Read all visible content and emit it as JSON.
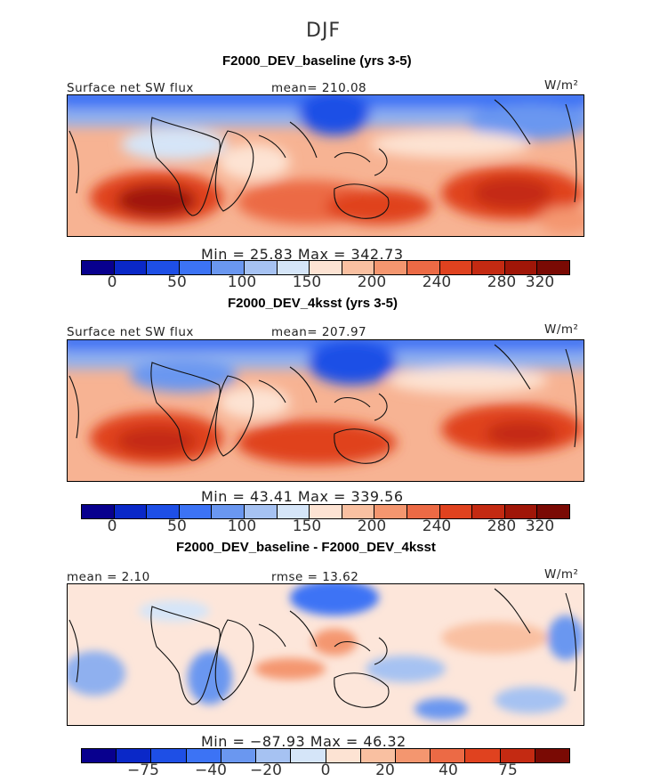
{
  "title": "DJF",
  "units": "W/m²",
  "panels": [
    {
      "title": "F2000_DEV_baseline (yrs 3-5)",
      "left_label": "Surface net SW flux",
      "stat_label": "mean= 210.08",
      "minmax": "Min =   25.83  Max  =  342.73",
      "palette": "abs",
      "ticks": [
        "0",
        "50",
        "100",
        "150",
        "200",
        "240",
        "280",
        "320"
      ]
    },
    {
      "title": "F2000_DEV_4ksst (yrs 3-5)",
      "left_label": "Surface net SW flux",
      "stat_label": "mean= 207.97",
      "minmax": "Min =   43.41  Max  =  339.56",
      "palette": "abs",
      "ticks": [
        "0",
        "50",
        "100",
        "150",
        "200",
        "240",
        "280",
        "320"
      ]
    },
    {
      "title": "F2000_DEV_baseline - F2000_DEV_4ksst",
      "left_label": "mean =    2.10",
      "stat_label": "rmse =   13.62",
      "minmax": "Min =  −87.93  Max  =   46.32",
      "palette": "diff",
      "ticks": [
        "−75",
        "−40",
        "−20",
        "0",
        "20",
        "40",
        "75"
      ]
    }
  ],
  "colors": {
    "abs": [
      "#08008e",
      "#0a28c8",
      "#1e4fe6",
      "#3c73f5",
      "#6a97f0",
      "#a6c2f2",
      "#d5e5f8",
      "#fde3d3",
      "#f9c0a1",
      "#f4966f",
      "#ec6a45",
      "#e0421f",
      "#c42a12",
      "#a01608",
      "#7a0a04"
    ],
    "diff": [
      "#08008e",
      "#0a28c8",
      "#1e4fe6",
      "#3c73f5",
      "#6a97f0",
      "#a6c2f2",
      "#d5e5f8",
      "#fde3d3",
      "#f9c0a1",
      "#f4966f",
      "#ec6a45",
      "#e0421f",
      "#c42a12",
      "#7a0a04"
    ]
  }
}
